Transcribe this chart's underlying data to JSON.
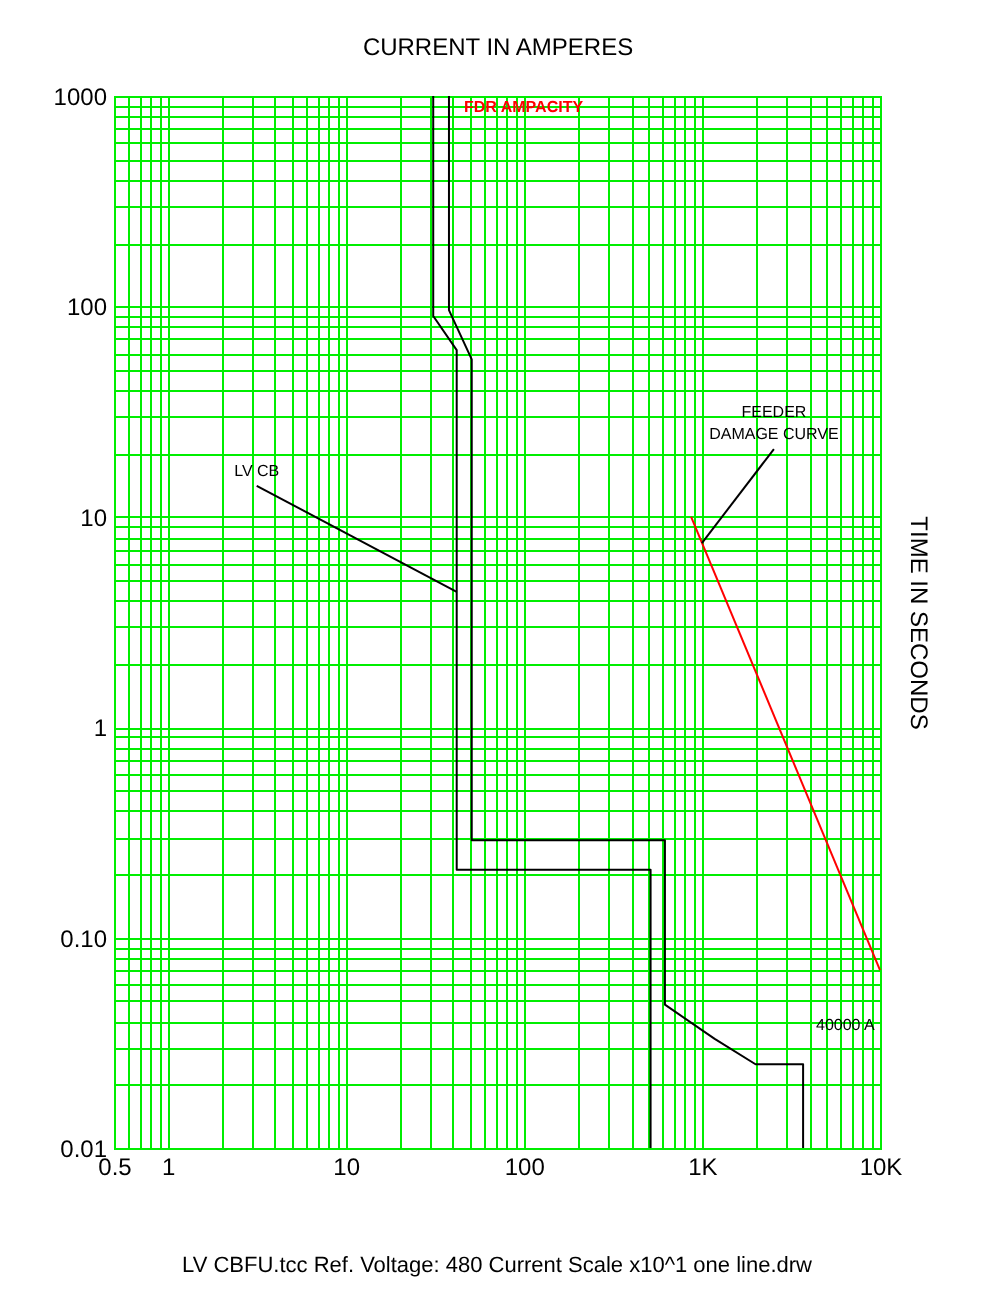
{
  "chart_data": {
    "type": "line",
    "xlabel": "CURRENT IN AMPERES",
    "ylabel": "TIME IN SECONDS",
    "log": "xy",
    "grid": true,
    "marker": "none",
    "line_style": "solid",
    "xlim": [
      0.5,
      10000
    ],
    "ylim": [
      0.01,
      1000
    ],
    "xticks": [
      0.5,
      {
        "value": 0.6,
        "label": null
      },
      {
        "value": 0.7,
        "label": null
      },
      {
        "value": 0.8,
        "label": null
      },
      {
        "value": 0.9,
        "label": null
      },
      1,
      {
        "value": 2,
        "label": null
      },
      {
        "value": 3,
        "label": null
      },
      {
        "value": 4,
        "label": null
      },
      {
        "value": 5,
        "label": null
      },
      {
        "value": 6,
        "label": null
      },
      {
        "value": 7,
        "label": null
      },
      {
        "value": 8,
        "label": null
      },
      {
        "value": 9,
        "label": null
      },
      10,
      {
        "value": 20,
        "label": null
      },
      {
        "value": 30,
        "label": null
      },
      {
        "value": 40,
        "label": null
      },
      {
        "value": 50,
        "label": null
      },
      {
        "value": 60,
        "label": null
      },
      {
        "value": 70,
        "label": null
      },
      {
        "value": 80,
        "label": null
      },
      {
        "value": 90,
        "label": null
      },
      100,
      {
        "value": 200,
        "label": null
      },
      {
        "value": 300,
        "label": null
      },
      {
        "value": 400,
        "label": null
      },
      {
        "value": 500,
        "label": null
      },
      {
        "value": 600,
        "label": null
      },
      {
        "value": 700,
        "label": null
      },
      {
        "value": 800,
        "label": null
      },
      {
        "value": 900,
        "label": null
      },
      {
        "value": 1000,
        "label": "1K"
      },
      {
        "value": 2000,
        "label": null
      },
      {
        "value": 3000,
        "label": null
      },
      {
        "value": 4000,
        "label": null
      },
      {
        "value": 5000,
        "label": null
      },
      {
        "value": 6000,
        "label": null
      },
      {
        "value": 7000,
        "label": null
      },
      {
        "value": 8000,
        "label": null
      },
      {
        "value": 9000,
        "label": null
      },
      {
        "value": 10000,
        "label": "10K"
      }
    ],
    "yticks": [
      0.01,
      {
        "value": 0.02,
        "label": null
      },
      {
        "value": 0.03,
        "label": null
      },
      {
        "value": 0.04,
        "label": null
      },
      {
        "value": 0.05,
        "label": null
      },
      {
        "value": 0.06,
        "label": null
      },
      {
        "value": 0.07,
        "label": null
      },
      {
        "value": 0.08,
        "label": null
      },
      {
        "value": 0.09,
        "label": null
      },
      {
        "value": 0.1,
        "label": "0.10"
      },
      {
        "value": 0.2,
        "label": null
      },
      {
        "value": 0.3,
        "label": null
      },
      {
        "value": 0.4,
        "label": null
      },
      {
        "value": 0.5,
        "label": null
      },
      {
        "value": 0.6,
        "label": null
      },
      {
        "value": 0.7,
        "label": null
      },
      {
        "value": 0.8,
        "label": null
      },
      {
        "value": 0.9,
        "label": null
      },
      1,
      {
        "value": 2,
        "label": null
      },
      {
        "value": 3,
        "label": null
      },
      {
        "value": 4,
        "label": null
      },
      {
        "value": 5,
        "label": null
      },
      {
        "value": 6,
        "label": null
      },
      {
        "value": 7,
        "label": null
      },
      {
        "value": 8,
        "label": null
      },
      {
        "value": 9,
        "label": null
      },
      10,
      {
        "value": 20,
        "label": null
      },
      {
        "value": 30,
        "label": null
      },
      {
        "value": 40,
        "label": null
      },
      {
        "value": 50,
        "label": null
      },
      {
        "value": 60,
        "label": null
      },
      {
        "value": 70,
        "label": null
      },
      {
        "value": 80,
        "label": null
      },
      {
        "value": 90,
        "label": null
      },
      100,
      {
        "value": 200,
        "label": null
      },
      {
        "value": 300,
        "label": null
      },
      {
        "value": 400,
        "label": null
      },
      {
        "value": 500,
        "label": null
      },
      {
        "value": 600,
        "label": null
      },
      {
        "value": 700,
        "label": null
      },
      {
        "value": 800,
        "label": null
      },
      {
        "value": 900,
        "label": null
      },
      1000
    ],
    "series": [
      {
        "type": "line",
        "color": "#000000",
        "x": [
          31,
          31,
          42,
          42,
          515,
          515
        ],
        "values": [
          1000,
          90,
          62,
          0.21,
          0.21,
          0.01
        ]
      },
      {
        "type": "line",
        "color": "#000000",
        "x": [
          38,
          38,
          51,
          51,
          620,
          620,
          1180,
          2000,
          3700,
          3700
        ],
        "values": [
          1000,
          96,
          56,
          0.29,
          0.29,
          0.048,
          0.033,
          0.025,
          0.025,
          0.01
        ]
      },
      {
        "type": "line",
        "color": "#ff0000",
        "x": [
          870,
          10000
        ],
        "values": [
          10,
          0.07
        ]
      }
    ],
    "annotations": [
      "FDR AMPACITY",
      {
        "text": "LV CB",
        "x": 42,
        "y": 4.4
      },
      {
        "text": "FEEDER DAMAGE CURVE",
        "x": 1000,
        "y": 7.5
      },
      "40000 A",
      "LV CBFU.tcc   Ref. Voltage: 480   Current Scale x10^1   one line.drw"
    ]
  }
}
